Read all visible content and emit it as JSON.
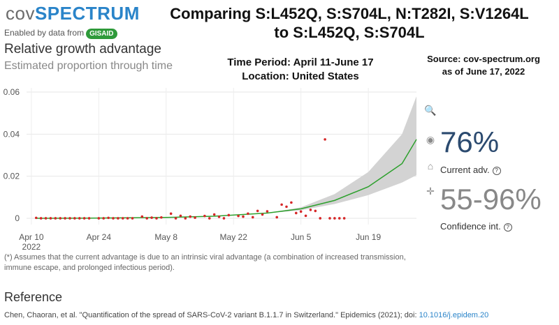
{
  "header": {
    "logo_part1": "cov",
    "logo_part2": "SPECTRUM",
    "enabled_by": "Enabled by data from",
    "gisaid": "GISAID",
    "headline_line1": "Comparing S:L452Q, S:S704L, N:T282I, S:V1264L",
    "headline_line2": "to S:L452Q, S:S704L"
  },
  "panel": {
    "title": "Relative growth advantage",
    "subtitle": "Estimated proportion through time"
  },
  "annotations": {
    "period_line1": "Time Period: April 11-June 17",
    "period_line2": "Location: United States",
    "source_line1": "Source: cov-spectrum.org",
    "source_line2": "as of June 17, 2022"
  },
  "stats": {
    "current_value": "76%",
    "current_label": "Current adv.",
    "confidence_value": "55-96%",
    "confidence_label": "Confidence int.",
    "info_glyph": "?"
  },
  "footnote": "(*) Assumes that the current advantage is due to an intrinsic viral advantage (a combination of increased transmission, immune escape, and prolonged infectious period).",
  "reference": {
    "heading": "Reference",
    "citation": "Chen, Chaoran, et al. \"Quantification of the spread of SARS-CoV-2 variant B.1.1.7 in Switzerland.\" Epidemics (2021); doi: ",
    "doi": "10.1016/j.epidem.20"
  },
  "icons": [
    "zoom-icon",
    "camera-icon",
    "home-icon",
    "pan-icon"
  ],
  "colors": {
    "fit": "#2ca02c",
    "points": "#d62728",
    "band": "#d3d3d3",
    "accent": "#2a84c9"
  },
  "chart_data": {
    "type": "scatter",
    "x_axis": {
      "ticks": [
        "Apr 10",
        "Apr 24",
        "May 8",
        "May 22",
        "Jun 5",
        "Jun 19"
      ],
      "year_label": "2022",
      "range": [
        "2022-04-09",
        "2022-06-29"
      ]
    },
    "y_axis": {
      "ticks": [
        "0",
        "0.02",
        "0.04",
        "0.06"
      ],
      "range": [
        -0.001,
        0.062
      ]
    },
    "grid": true,
    "series": [
      {
        "kind": "points",
        "points": [
          [
            "2022-04-11",
            0.0002
          ],
          [
            "2022-04-12",
            0
          ],
          [
            "2022-04-13",
            0
          ],
          [
            "2022-04-14",
            0
          ],
          [
            "2022-04-15",
            0
          ],
          [
            "2022-04-16",
            0
          ],
          [
            "2022-04-17",
            0
          ],
          [
            "2022-04-18",
            0
          ],
          [
            "2022-04-19",
            0
          ],
          [
            "2022-04-20",
            0
          ],
          [
            "2022-04-21",
            0
          ],
          [
            "2022-04-22",
            0
          ],
          [
            "2022-04-24",
            0
          ],
          [
            "2022-04-25",
            0
          ],
          [
            "2022-04-26",
            0.0002
          ],
          [
            "2022-04-27",
            0
          ],
          [
            "2022-04-28",
            0
          ],
          [
            "2022-04-29",
            0
          ],
          [
            "2022-04-30",
            0
          ],
          [
            "2022-05-01",
            0
          ],
          [
            "2022-05-03",
            0.0008
          ],
          [
            "2022-05-04",
            0
          ],
          [
            "2022-05-05",
            0.0003
          ],
          [
            "2022-05-06",
            0
          ],
          [
            "2022-05-07",
            0.0004
          ],
          [
            "2022-05-09",
            0.0022
          ],
          [
            "2022-05-10",
            0
          ],
          [
            "2022-05-11",
            0.0012
          ],
          [
            "2022-05-12",
            0
          ],
          [
            "2022-05-13",
            0.0008
          ],
          [
            "2022-05-14",
            0.0003
          ],
          [
            "2022-05-16",
            0.0011
          ],
          [
            "2022-05-17",
            0
          ],
          [
            "2022-05-18",
            0.0018
          ],
          [
            "2022-05-19",
            0.0007
          ],
          [
            "2022-05-20",
            0
          ],
          [
            "2022-05-21",
            0.0015
          ],
          [
            "2022-05-23",
            0.0011
          ],
          [
            "2022-05-24",
            0.0008
          ],
          [
            "2022-05-25",
            0.0022
          ],
          [
            "2022-05-26",
            0.0005
          ],
          [
            "2022-05-27",
            0.0035
          ],
          [
            "2022-05-28",
            0.0018
          ],
          [
            "2022-05-29",
            0.0033
          ],
          [
            "2022-05-31",
            0.0005
          ],
          [
            "2022-06-01",
            0.0065
          ],
          [
            "2022-06-02",
            0.0055
          ],
          [
            "2022-06-03",
            0.0075
          ],
          [
            "2022-06-04",
            0.0025
          ],
          [
            "2022-06-05",
            0.0032
          ],
          [
            "2022-06-06",
            0.0012
          ],
          [
            "2022-06-07",
            0.004
          ],
          [
            "2022-06-08",
            0.0035
          ],
          [
            "2022-06-09",
            0
          ],
          [
            "2022-06-10",
            0.0375
          ],
          [
            "2022-06-11",
            0
          ],
          [
            "2022-06-12",
            0
          ],
          [
            "2022-06-13",
            0
          ],
          [
            "2022-06-14",
            0
          ]
        ]
      },
      {
        "kind": "fit",
        "points": [
          [
            "2022-04-11",
            0
          ],
          [
            "2022-04-25",
            0.0001
          ],
          [
            "2022-05-08",
            0.0004
          ],
          [
            "2022-05-18",
            0.001
          ],
          [
            "2022-05-29",
            0.0025
          ],
          [
            "2022-06-05",
            0.0045
          ],
          [
            "2022-06-12",
            0.0085
          ],
          [
            "2022-06-19",
            0.015
          ],
          [
            "2022-06-26",
            0.026
          ],
          [
            "2022-06-29",
            0.0375
          ]
        ]
      },
      {
        "kind": "band",
        "upper": [
          [
            "2022-05-29",
            0.0025
          ],
          [
            "2022-06-05",
            0.0052
          ],
          [
            "2022-06-12",
            0.0115
          ],
          [
            "2022-06-19",
            0.022
          ],
          [
            "2022-06-26",
            0.04
          ],
          [
            "2022-06-29",
            0.058
          ]
        ],
        "lower": [
          [
            "2022-05-29",
            0.0024
          ],
          [
            "2022-06-05",
            0.0038
          ],
          [
            "2022-06-12",
            0.0068
          ],
          [
            "2022-06-19",
            0.011
          ],
          [
            "2022-06-26",
            0.017
          ],
          [
            "2022-06-29",
            0.0205
          ]
        ]
      }
    ]
  }
}
